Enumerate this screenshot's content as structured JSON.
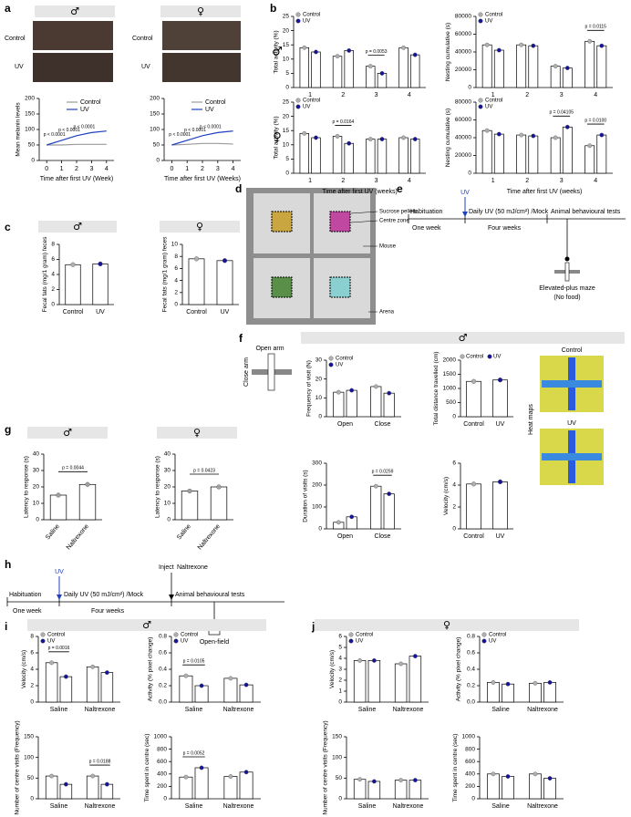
{
  "figure": {
    "panel_letters": [
      "a",
      "b",
      "c",
      "d",
      "e",
      "f",
      "g",
      "h",
      "i",
      "j"
    ],
    "photo_rows": [
      "Control",
      "UV",
      "Control",
      "UV"
    ],
    "arena_labels": [
      "Sucrose pellets",
      "Centre zone",
      "Mouse",
      "Arena"
    ],
    "timeline_e": {
      "habituation": "Habituation",
      "one_week": "One week",
      "uv": "UV",
      "daily": "Daily UV (50 mJ/cm²) /Mock",
      "four_weeks": "Four weeks",
      "tests": "Animal behavioural tests",
      "maze": "Elevated-plus maze",
      "no_food": "(No food)"
    },
    "maze_f": {
      "open": "Open arm",
      "close": "Close arm"
    },
    "heatmaps_f": {
      "labels": [
        "Control",
        "UV"
      ],
      "caption": "Heat maps"
    },
    "timeline_h": {
      "habituation": "Habituation",
      "one_week": "One week",
      "uv": "UV",
      "daily": "Daily UV (50 mJ/cm²) /Mock",
      "four_weeks": "Four weeks",
      "inject": "Inject",
      "naltrexone": "Naltrexone",
      "tests": "Animal behavioural tests",
      "open_field": "Open-field"
    }
  },
  "chart_data": [
    {
      "type": "line",
      "title": "♂",
      "x": [
        0,
        1,
        2,
        3,
        4
      ],
      "xlim": [
        -0.5,
        4.5
      ],
      "xticks": [
        0,
        1,
        2,
        3,
        4
      ],
      "ylim": [
        0,
        200
      ],
      "yticks": [
        0,
        50,
        100,
        150,
        200
      ],
      "ylabel": "Mean melanin levels",
      "xlabel": "Time after first UV (Week)",
      "series": [
        {
          "name": "Control",
          "color": "#9a9a9a",
          "values": [
            50,
            50,
            52,
            52,
            52
          ]
        },
        {
          "name": "UV",
          "color": "#1f3fbf",
          "values": [
            50,
            65,
            80,
            90,
            95
          ]
        }
      ],
      "p_labels": [
        null,
        "p < 0.0001",
        "p < 0.0001",
        "p < 0.0001",
        null
      ]
    },
    {
      "type": "line",
      "title": "♀",
      "x": [
        0,
        1,
        2,
        3,
        4
      ],
      "xlim": [
        -0.5,
        4.5
      ],
      "xticks": [
        0,
        1,
        2,
        3,
        4
      ],
      "ylim": [
        0,
        200
      ],
      "yticks": [
        0,
        50,
        100,
        150,
        200
      ],
      "xlabel": "Time after first UV (Weeks)",
      "series": [
        {
          "name": "Control",
          "color": "#9a9a9a",
          "values": [
            50,
            52,
            55,
            55,
            53
          ]
        },
        {
          "name": "UV",
          "color": "#1f3fbf",
          "values": [
            50,
            65,
            80,
            90,
            95
          ]
        }
      ],
      "p_labels": [
        null,
        "p < 0.0001",
        "p < 0.0001",
        "p < 0.0001",
        null
      ]
    },
    {
      "type": "bar",
      "title": "♂",
      "categories": [
        "1",
        "2",
        "3",
        "4"
      ],
      "ylim": [
        0,
        25
      ],
      "yticks": [
        0,
        5,
        10,
        15,
        20,
        25
      ],
      "ylabel": "Total activity (%)",
      "legend": true,
      "series": [
        {
          "name": "Control",
          "color": "#b0b0b0",
          "values": [
            14,
            11,
            7.5,
            14
          ]
        },
        {
          "name": "UV",
          "color": "#14149b",
          "values": [
            12.5,
            13,
            5,
            11.5
          ]
        }
      ],
      "p_labels": [
        null,
        null,
        "p = 0.0053",
        null
      ]
    },
    {
      "type": "bar",
      "categories": [
        "1",
        "2",
        "3",
        "4"
      ],
      "ylim": [
        0,
        80000
      ],
      "yticks": [
        0,
        20000,
        40000,
        60000,
        80000
      ],
      "ylabel": "Nesting cumulative (s)",
      "legend": true,
      "series": [
        {
          "name": "Control",
          "color": "#b0b0b0",
          "values": [
            48000,
            48000,
            24000,
            52000
          ]
        },
        {
          "name": "UV",
          "color": "#14149b",
          "values": [
            42000,
            47000,
            22000,
            47000
          ]
        }
      ],
      "p_labels": [
        null,
        null,
        null,
        "p = 0.0115"
      ]
    },
    {
      "type": "bar",
      "title": "♀",
      "categories": [
        "1",
        "2",
        "3",
        "4"
      ],
      "ylim": [
        0,
        25
      ],
      "yticks": [
        0,
        5,
        10,
        15,
        20,
        25
      ],
      "ylabel": "Total activity (%)",
      "xlabel": "Time after first UV (weeks)",
      "legend": true,
      "series": [
        {
          "name": "Control",
          "color": "#b0b0b0",
          "values": [
            14,
            13,
            12,
            12.5
          ]
        },
        {
          "name": "UV",
          "color": "#14149b",
          "values": [
            12.5,
            10.5,
            12,
            12
          ]
        }
      ],
      "p_labels": [
        null,
        "p = 0.0164",
        null,
        null
      ]
    },
    {
      "type": "bar",
      "categories": [
        "1",
        "2",
        "3",
        "4"
      ],
      "ylim": [
        0,
        80000
      ],
      "yticks": [
        0,
        20000,
        40000,
        60000,
        80000
      ],
      "ylabel": "Nesting cumulative (s)",
      "xlabel": "Time after first UV (weeks)",
      "legend": true,
      "series": [
        {
          "name": "Control",
          "color": "#b0b0b0",
          "values": [
            48000,
            43000,
            40000,
            31000
          ]
        },
        {
          "name": "UV",
          "color": "#14149b",
          "values": [
            44000,
            42000,
            52000,
            43000
          ]
        }
      ],
      "p_labels": [
        null,
        null,
        "p = 0.04105",
        "p = 0.0100"
      ]
    },
    {
      "type": "bar",
      "title": "♂",
      "categories": [
        "Control",
        "UV"
      ],
      "values": [
        5.3,
        5.4
      ],
      "colors": [
        "#b0b0b0",
        "#14149b"
      ],
      "ylim": [
        0,
        8
      ],
      "yticks": [
        0,
        2,
        4,
        6,
        8
      ],
      "ylabel": "Fecal fats (mg/1 gram) feces"
    },
    {
      "type": "bar",
      "title": "♀",
      "categories": [
        "Control",
        "UV"
      ],
      "values": [
        7.6,
        7.3
      ],
      "colors": [
        "#b0b0b0",
        "#14149b"
      ],
      "ylim": [
        0,
        10
      ],
      "yticks": [
        0,
        2,
        4,
        6,
        8,
        10
      ],
      "ylabel": "Fecal fats (mg/1 gram) feces"
    },
    {
      "type": "bar",
      "title": "♂",
      "categories": [
        "Saline",
        "Naltrexone"
      ],
      "values": [
        15,
        21.5
      ],
      "colors": [
        "#a0a0a0",
        "#a0a0a0"
      ],
      "ylim": [
        0,
        40
      ],
      "yticks": [
        0,
        10,
        20,
        30,
        40
      ],
      "ylabel": "Latency to response (s)",
      "p_label": "p = 0.0044"
    },
    {
      "type": "bar",
      "title": "♀",
      "categories": [
        "Saline",
        "Naltrexone"
      ],
      "values": [
        17.5,
        20
      ],
      "colors": [
        "#a0a0a0",
        "#a0a0a0"
      ],
      "ylim": [
        0,
        40
      ],
      "yticks": [
        0,
        10,
        20,
        30,
        40
      ],
      "ylabel": "Latency to response (s)",
      "p_label": "p = 0.0423"
    },
    {
      "type": "bar",
      "title": "♂",
      "categories": [
        "Open",
        "Close"
      ],
      "ylim": [
        0,
        30
      ],
      "yticks": [
        0,
        10,
        20,
        30
      ],
      "ylabel": "Frequency of visit (N)",
      "legend": true,
      "series": [
        {
          "name": "Control",
          "color": "#b0b0b0",
          "values": [
            13,
            16
          ]
        },
        {
          "name": "UV",
          "color": "#14149b",
          "values": [
            14,
            12.5
          ]
        }
      ]
    },
    {
      "type": "bar",
      "categories": [
        "Control",
        "UV"
      ],
      "values": [
        1250,
        1300
      ],
      "colors": [
        "#b0b0b0",
        "#14149b"
      ],
      "legend_labels": [
        "Control",
        "UV"
      ],
      "ylim": [
        0,
        2000
      ],
      "yticks": [
        0,
        500,
        1000,
        1500,
        2000
      ],
      "ylabel": "Total distance travelled (cm)"
    },
    {
      "type": "bar",
      "categories": [
        "Open",
        "Close"
      ],
      "ylim": [
        0,
        300
      ],
      "yticks": [
        0,
        100,
        200,
        300
      ],
      "ylabel": "Duration of visits (s)",
      "series": [
        {
          "name": "Control",
          "color": "#b0b0b0",
          "values": [
            30,
            195
          ]
        },
        {
          "name": "UV",
          "color": "#14149b",
          "values": [
            55,
            160
          ]
        }
      ],
      "p_labels": [
        null,
        "p = 0.0259"
      ]
    },
    {
      "type": "bar",
      "categories": [
        "Control",
        "UV"
      ],
      "values": [
        4.1,
        4.3
      ],
      "colors": [
        "#b0b0b0",
        "#14149b"
      ],
      "ylim": [
        0,
        6
      ],
      "yticks": [
        0,
        2,
        4,
        6
      ],
      "ylabel": "Velocity (cm/s)"
    },
    {
      "type": "bar",
      "title": "♂",
      "categories": [
        "Saline",
        "Naltrexone"
      ],
      "ylim": [
        0,
        8
      ],
      "yticks": [
        0,
        2,
        4,
        6,
        8
      ],
      "ylabel": "Velocity (cm/s)",
      "legend": true,
      "series": [
        {
          "name": "Control",
          "color": "#b0b0b0",
          "values": [
            4.8,
            4.3
          ]
        },
        {
          "name": "UV",
          "color": "#14149b",
          "values": [
            3.1,
            3.6
          ]
        }
      ],
      "p_labels": [
        "p = 0.0016",
        null
      ]
    },
    {
      "type": "bar",
      "categories": [
        "Saline",
        "Naltrexone"
      ],
      "ylim": [
        0,
        0.8
      ],
      "yticks": [
        {
          "value": 0,
          "label": "0.0"
        },
        0.2,
        0.4,
        0.6,
        0.8
      ],
      "ylabel": "Activity (% pixel change)",
      "legend": true,
      "series": [
        {
          "name": "Control",
          "color": "#b0b0b0",
          "values": [
            0.32,
            0.29
          ]
        },
        {
          "name": "UV",
          "color": "#14149b",
          "values": [
            0.2,
            0.21
          ]
        }
      ],
      "p_labels": [
        "p = 0.0105",
        null
      ]
    },
    {
      "type": "bar",
      "categories": [
        "Saline",
        "Naltrexone"
      ],
      "ylim": [
        0,
        150
      ],
      "yticks": [
        0,
        50,
        100,
        150
      ],
      "ylabel": "Number of centre visits (Frequency)",
      "series": [
        {
          "name": "Control",
          "color": "#b0b0b0",
          "values": [
            55,
            55
          ]
        },
        {
          "name": "UV",
          "color": "#14149b",
          "values": [
            35,
            35
          ]
        }
      ],
      "p_labels": [
        null,
        "p = 0.0188"
      ]
    },
    {
      "type": "bar",
      "categories": [
        "Saline",
        "Naltrexone"
      ],
      "ylim": [
        0,
        1000
      ],
      "yticks": [
        0,
        200,
        400,
        600,
        800,
        1000
      ],
      "ylabel": "Time spent in centre (sec)",
      "series": [
        {
          "name": "Control",
          "color": "#b0b0b0",
          "values": [
            350,
            360
          ]
        },
        {
          "name": "UV",
          "color": "#14149b",
          "values": [
            500,
            430
          ]
        }
      ],
      "p_labels": [
        "p = 0.0052",
        null
      ]
    },
    {
      "type": "bar",
      "title": "♀",
      "categories": [
        "Saline",
        "Naltrexone"
      ],
      "ylim": [
        0,
        6
      ],
      "yticks": [
        0,
        1,
        2,
        3,
        4,
        5,
        6
      ],
      "ylabel": "Velocity (cm/s)",
      "legend": true,
      "series": [
        {
          "name": "Control",
          "color": "#b0b0b0",
          "values": [
            3.8,
            3.5
          ]
        },
        {
          "name": "UV",
          "color": "#14149b",
          "values": [
            3.8,
            4.2
          ]
        }
      ]
    },
    {
      "type": "bar",
      "categories": [
        "Saline",
        "Naltrexone"
      ],
      "ylim": [
        0,
        0.8
      ],
      "yticks": [
        {
          "value": 0,
          "label": "0.0"
        },
        0.2,
        0.4,
        0.6,
        0.8
      ],
      "ylabel": "Activity (% pixel change)",
      "legend": true,
      "series": [
        {
          "name": "Control",
          "color": "#b0b0b0",
          "values": [
            0.24,
            0.23
          ]
        },
        {
          "name": "UV",
          "color": "#14149b",
          "values": [
            0.22,
            0.24
          ]
        }
      ]
    },
    {
      "type": "bar",
      "categories": [
        "Saline",
        "Naltrexone"
      ],
      "ylim": [
        0,
        150
      ],
      "yticks": [
        0,
        50,
        100,
        150
      ],
      "ylabel": "Number of centre visits (Frequency)",
      "series": [
        {
          "name": "Control",
          "color": "#b0b0b0",
          "values": [
            47,
            45
          ]
        },
        {
          "name": "UV",
          "color": "#14149b",
          "values": [
            42,
            45
          ]
        }
      ]
    },
    {
      "type": "bar",
      "categories": [
        "Saline",
        "Naltrexone"
      ],
      "ylim": [
        0,
        1000
      ],
      "yticks": [
        0,
        200,
        400,
        600,
        800,
        1000
      ],
      "ylabel": "Time spent in centre (sec)",
      "series": [
        {
          "name": "Control",
          "color": "#b0b0b0",
          "values": [
            400,
            400
          ]
        },
        {
          "name": "UV",
          "color": "#14149b",
          "values": [
            360,
            330
          ]
        }
      ]
    }
  ]
}
